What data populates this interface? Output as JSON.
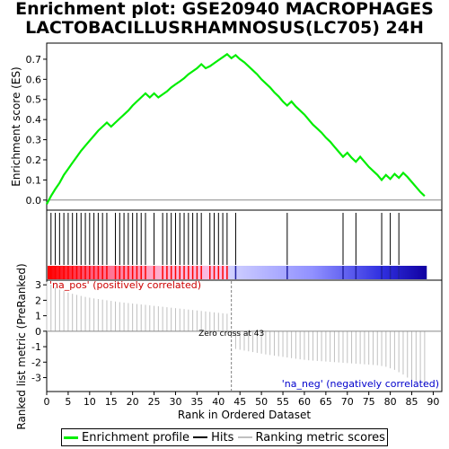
{
  "title_lines": [
    "Enrichment plot: GSE20940 MACROPHAGES",
    "LACTOBACILLUSRHAMNOSUS(LC705) 24H"
  ],
  "colors": {
    "enrichment": "#00ee00",
    "hits": "#000000",
    "metric": "#c0c0c0",
    "pos_label": "#cc0000",
    "neg_label": "#0000cc",
    "zero_line": "#888888"
  },
  "chart_data": [
    {
      "type": "line",
      "name": "enrichment-score",
      "ylabel": "Enrichment score (ES)",
      "ylim": [
        -0.05,
        0.78
      ],
      "yticks": [
        0.0,
        0.1,
        0.2,
        0.3,
        0.4,
        0.5,
        0.6,
        0.7
      ],
      "ytick_labels": [
        "0.0",
        "0.1",
        "0.2",
        "0.3",
        "0.4",
        "0.5",
        "0.6",
        "0.7"
      ],
      "xlim": [
        0,
        92
      ],
      "series": [
        {
          "name": "Enrichment profile",
          "x": [
            0,
            1,
            2,
            3,
            4,
            5,
            6,
            7,
            8,
            9,
            10,
            11,
            12,
            13,
            14,
            15,
            16,
            17,
            18,
            19,
            20,
            21,
            22,
            23,
            24,
            25,
            26,
            27,
            28,
            29,
            30,
            31,
            32,
            33,
            34,
            35,
            36,
            37,
            38,
            39,
            40,
            41,
            42,
            43,
            44,
            45,
            46,
            47,
            48,
            49,
            50,
            51,
            52,
            53,
            54,
            55,
            56,
            57,
            58,
            59,
            60,
            61,
            62,
            63,
            64,
            65,
            66,
            67,
            68,
            69,
            70,
            71,
            72,
            73,
            74,
            75,
            76,
            77,
            78,
            79,
            80,
            81,
            82,
            83,
            84,
            85,
            86,
            87,
            88
          ],
          "y": [
            -0.02,
            0.02,
            0.055,
            0.085,
            0.125,
            0.155,
            0.185,
            0.215,
            0.245,
            0.27,
            0.295,
            0.32,
            0.345,
            0.365,
            0.385,
            0.365,
            0.385,
            0.405,
            0.425,
            0.445,
            0.47,
            0.49,
            0.51,
            0.53,
            0.51,
            0.53,
            0.51,
            0.525,
            0.54,
            0.56,
            0.575,
            0.59,
            0.605,
            0.625,
            0.64,
            0.655,
            0.675,
            0.655,
            0.665,
            0.68,
            0.695,
            0.71,
            0.725,
            0.705,
            0.72,
            0.7,
            0.685,
            0.665,
            0.645,
            0.625,
            0.6,
            0.58,
            0.56,
            0.535,
            0.515,
            0.49,
            0.47,
            0.49,
            0.465,
            0.445,
            0.425,
            0.4,
            0.375,
            0.355,
            0.335,
            0.31,
            0.29,
            0.265,
            0.24,
            0.215,
            0.235,
            0.21,
            0.19,
            0.215,
            0.19,
            0.165,
            0.145,
            0.125,
            0.1,
            0.125,
            0.105,
            0.13,
            0.11,
            0.135,
            0.115,
            0.09,
            0.065,
            0.04,
            0.02
          ]
        }
      ]
    },
    {
      "type": "scatter",
      "name": "hits",
      "series": [
        {
          "name": "Hits",
          "x": [
            1,
            2,
            3,
            4,
            5,
            6,
            7,
            8,
            9,
            10,
            11,
            12,
            13,
            14,
            16,
            17,
            18,
            19,
            20,
            21,
            22,
            23,
            25,
            27,
            28,
            29,
            30,
            31,
            32,
            33,
            34,
            35,
            36,
            38,
            39,
            40,
            41,
            42,
            44,
            56,
            69,
            72,
            78,
            80,
            82
          ]
        }
      ]
    },
    {
      "type": "bar",
      "name": "ranking-metric",
      "xlabel": "Rank in Ordered Dataset",
      "ylabel": "Ranked list metric (PreRanked)",
      "xlim": [
        0,
        92
      ],
      "xticks": [
        0,
        5,
        10,
        15,
        20,
        25,
        30,
        35,
        40,
        45,
        50,
        55,
        60,
        65,
        70,
        75,
        80,
        85,
        90
      ],
      "ylim": [
        -3.9,
        3.3
      ],
      "yticks": [
        -3,
        -2,
        -1,
        0,
        1,
        2,
        3
      ],
      "x": [
        0,
        1,
        2,
        3,
        4,
        5,
        6,
        7,
        8,
        9,
        10,
        11,
        12,
        13,
        14,
        15,
        16,
        17,
        18,
        19,
        20,
        21,
        22,
        23,
        24,
        25,
        26,
        27,
        28,
        29,
        30,
        31,
        32,
        33,
        34,
        35,
        36,
        37,
        38,
        39,
        40,
        41,
        42,
        43,
        44,
        45,
        46,
        47,
        48,
        49,
        50,
        51,
        52,
        53,
        54,
        55,
        56,
        57,
        58,
        59,
        60,
        61,
        62,
        63,
        64,
        65,
        66,
        67,
        68,
        69,
        70,
        71,
        72,
        73,
        74,
        75,
        76,
        77,
        78,
        79,
        80,
        81,
        82,
        83,
        84,
        85,
        86,
        87,
        88
      ],
      "values": [
        3.2,
        3.0,
        2.85,
        2.7,
        2.6,
        2.5,
        2.42,
        2.35,
        2.28,
        2.22,
        2.17,
        2.12,
        2.08,
        2.04,
        2.0,
        1.96,
        1.92,
        1.88,
        1.85,
        1.82,
        1.79,
        1.76,
        1.73,
        1.7,
        1.67,
        1.64,
        1.61,
        1.58,
        1.55,
        1.52,
        1.49,
        1.46,
        1.43,
        1.4,
        1.37,
        1.34,
        1.31,
        1.28,
        1.25,
        1.22,
        1.19,
        1.16,
        1.13,
        0.0,
        -1.15,
        -1.2,
        -1.25,
        -1.3,
        -1.35,
        -1.4,
        -1.45,
        -1.5,
        -1.54,
        -1.58,
        -1.62,
        -1.66,
        -1.7,
        -1.74,
        -1.78,
        -1.82,
        -1.85,
        -1.88,
        -1.9,
        -1.92,
        -1.94,
        -1.96,
        -1.98,
        -2.0,
        -2.02,
        -2.04,
        -2.06,
        -2.08,
        -2.1,
        -2.12,
        -2.14,
        -2.16,
        -2.18,
        -2.2,
        -2.25,
        -2.3,
        -2.4,
        -2.5,
        -2.65,
        -2.8,
        -3.0,
        -3.2,
        -3.3,
        -3.4,
        -3.6
      ],
      "zero_cross_rank": 43,
      "annotations": {
        "pos": "'na_pos' (positively correlated)",
        "neg": "'na_neg' (negatively correlated)",
        "zero_cross": "Zero cross at 43"
      }
    }
  ],
  "legend": [
    {
      "label": "Enrichment profile",
      "kind": "line-green"
    },
    {
      "label": "Hits",
      "kind": "line-black"
    },
    {
      "label": "Ranking metric scores",
      "kind": "line-gray"
    }
  ]
}
